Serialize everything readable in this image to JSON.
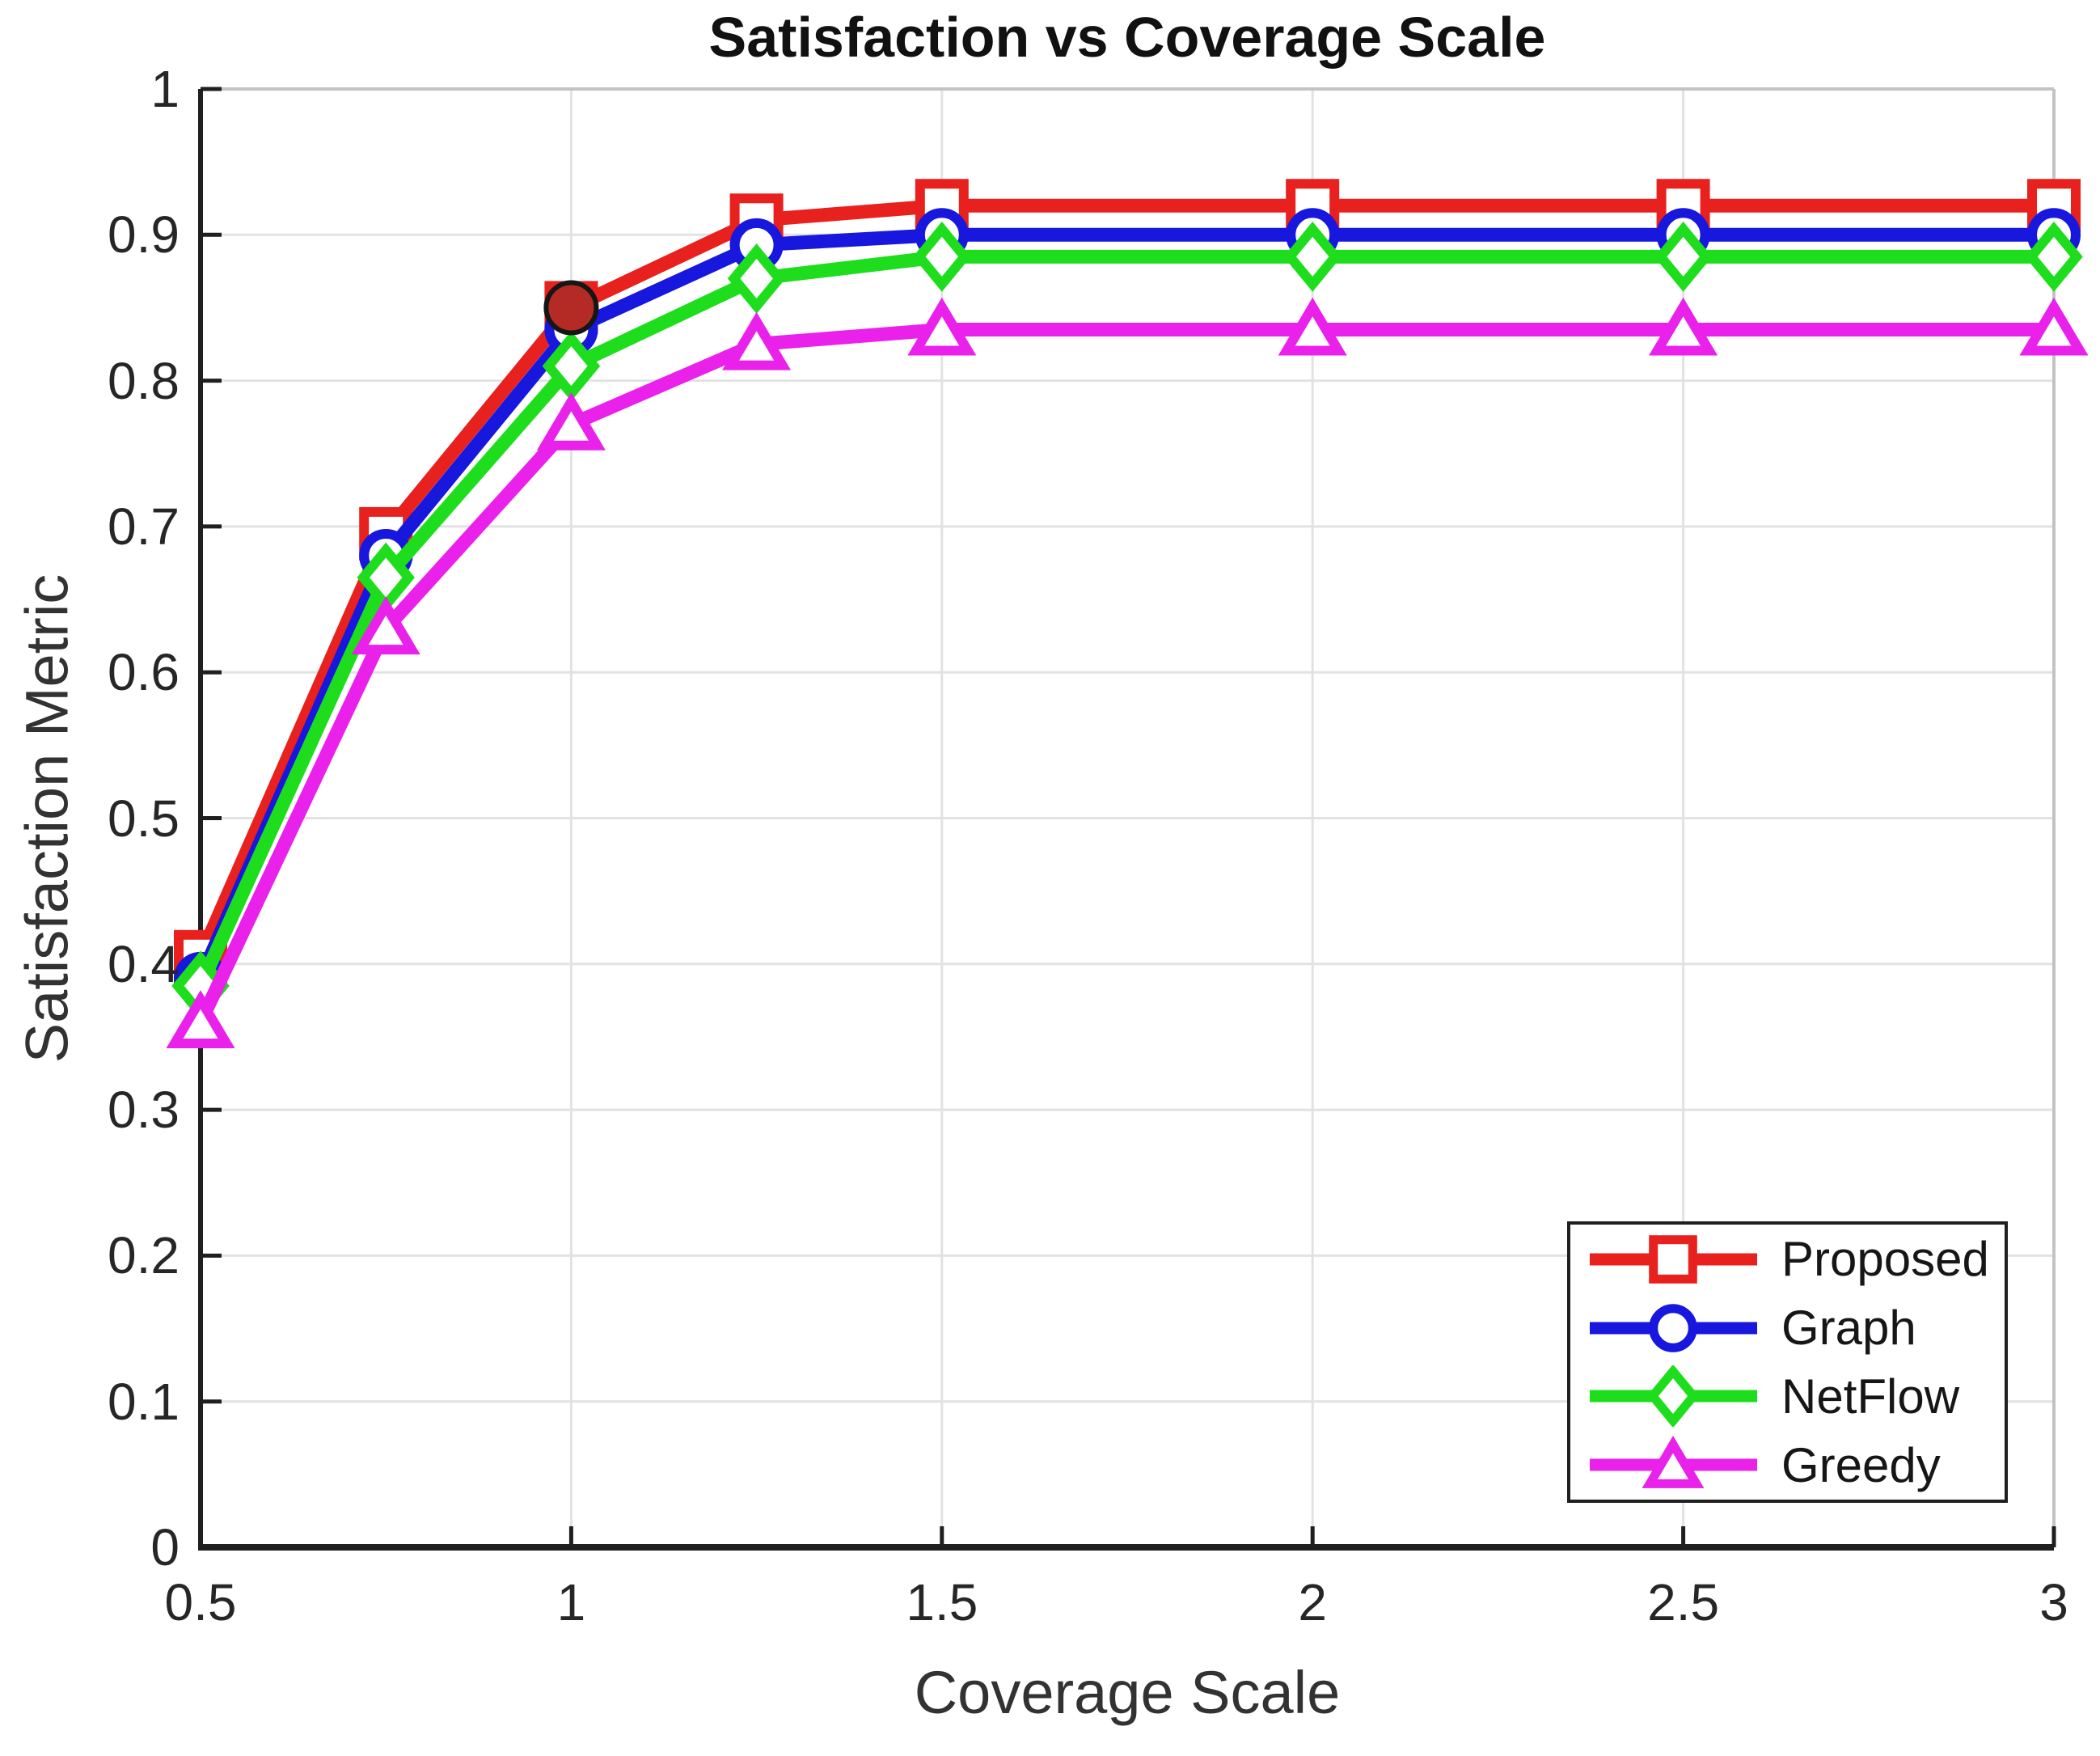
{
  "chart_data": {
    "type": "line",
    "title": "Satisfaction vs Coverage Scale",
    "xlabel": "Coverage Scale",
    "ylabel": "Satisfaction Metric",
    "xlim": [
      0.5,
      3
    ],
    "ylim": [
      0,
      1
    ],
    "grid": true,
    "legend_position": "lower right",
    "xticks": [
      0.5,
      1,
      1.5,
      2,
      2.5,
      3
    ],
    "xtick_labels": [
      "0.5",
      "1",
      "1.5",
      "2",
      "2.5",
      "3"
    ],
    "yticks": [
      0,
      0.1,
      0.2,
      0.3,
      0.4,
      0.5,
      0.6,
      0.7,
      0.8,
      0.9,
      1
    ],
    "ytick_labels": [
      "0",
      "0.1",
      "0.2",
      "0.3",
      "0.4",
      "0.5",
      "0.6",
      "0.7",
      "0.8",
      "0.9",
      "1"
    ],
    "x": [
      0.5,
      0.75,
      1,
      1.25,
      1.5,
      2,
      2.5,
      3
    ],
    "series": [
      {
        "name": "Proposed",
        "color": "#e8201e",
        "marker": "square",
        "values": [
          0.405,
          0.695,
          0.85,
          0.91,
          0.92,
          0.92,
          0.92,
          0.92
        ]
      },
      {
        "name": "Graph",
        "color": "#1717dd",
        "marker": "circle",
        "values": [
          0.39,
          0.68,
          0.835,
          0.893,
          0.9,
          0.9,
          0.9,
          0.9
        ]
      },
      {
        "name": "NetFlow",
        "color": "#1ddd1d",
        "marker": "diamond",
        "values": [
          0.385,
          0.665,
          0.81,
          0.87,
          0.885,
          0.885,
          0.885,
          0.885
        ]
      },
      {
        "name": "Greedy",
        "color": "#ea21ea",
        "marker": "triangle",
        "values": [
          0.36,
          0.63,
          0.77,
          0.825,
          0.835,
          0.835,
          0.835,
          0.835
        ]
      }
    ],
    "highlight_point": {
      "x": 1,
      "y": 0.85,
      "fill": "#b42b26",
      "edge": "#161616"
    },
    "colors": {
      "grid": "#e2e2e2",
      "box_border": "#c3c3c3",
      "axis": "#1f1f1f",
      "tick_text": "#262626"
    }
  }
}
